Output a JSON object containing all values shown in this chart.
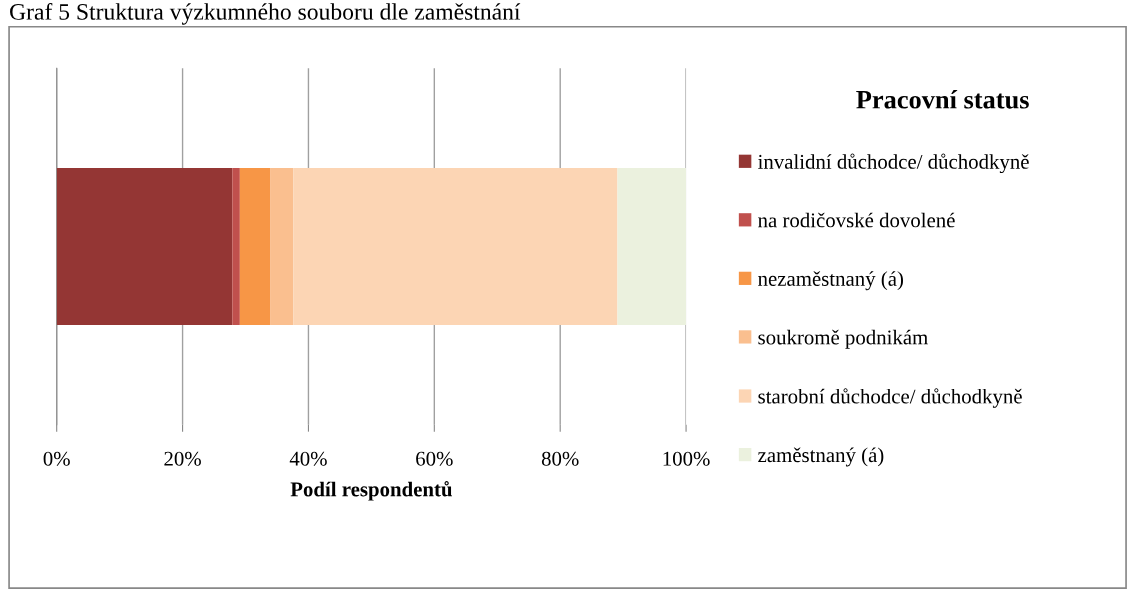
{
  "chart_data": {
    "type": "bar",
    "orientation": "horizontal",
    "stacked": true,
    "title": "Graf 5 Struktura výzkumného souboru dle zaměstnání",
    "xlabel": "Podíl respondentů",
    "legend_title": "Pracovní status",
    "categories": [
      null
    ],
    "series": [
      {
        "name": "invalidní důchodce/ důchodkyně",
        "color": "#943634",
        "values": [
          27.9
        ]
      },
      {
        "name": "na rodičovské dovolené",
        "color": "#c0504d",
        "values": [
          1.2
        ]
      },
      {
        "name": "nezaměstnaný (á)",
        "color": "#f79646",
        "values": [
          4.8
        ]
      },
      {
        "name": "soukromě podnikám",
        "color": "#fabf8f",
        "values": [
          3.7
        ]
      },
      {
        "name": "starobní důchodce/ důchodkyně",
        "color": "#fcd5b4",
        "values": [
          51.5
        ]
      },
      {
        "name": "zaměstnaný (á)",
        "color": "#ebf1de",
        "values": [
          10.9
        ]
      }
    ],
    "xlim": [
      0,
      100
    ],
    "xticks": [
      {
        "value": 0,
        "label": "0%"
      },
      {
        "value": 20,
        "label": "20%"
      },
      {
        "value": 40,
        "label": "40%"
      },
      {
        "value": 60,
        "label": "60%"
      },
      {
        "value": 80,
        "label": "80%"
      },
      {
        "value": 100,
        "label": "100%"
      }
    ],
    "grid": "x",
    "legend": "right"
  }
}
